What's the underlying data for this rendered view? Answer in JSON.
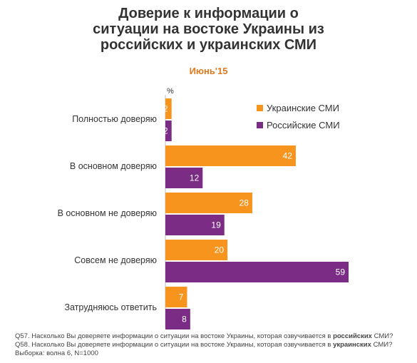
{
  "title_lines": [
    "Доверие к информации о",
    "ситуации на востоке Украины из",
    "российских и украинских СМИ"
  ],
  "subtitle": "Июнь'15",
  "unit_label": "%",
  "colors": {
    "ukrainian": "#f7941d",
    "russian": "#7b2c84"
  },
  "chart_data": {
    "type": "bar",
    "orientation": "horizontal",
    "title": "Доверие к информации о ситуации на востоке Украины из российских и украинских СМИ",
    "subtitle": "Июнь'15",
    "unit": "%",
    "categories": [
      "Полностью доверяю",
      "В основном доверяю",
      "В основном не доверяю",
      "Совсем не доверяю",
      "Затрудняюсь ответить"
    ],
    "series": [
      {
        "name": "Украинские СМИ",
        "values": [
          2,
          42,
          28,
          20,
          7
        ]
      },
      {
        "name": "Российские СМИ",
        "values": [
          2,
          12,
          19,
          59,
          8
        ]
      }
    ],
    "xlim": [
      0,
      59
    ],
    "grid": false,
    "legend_position": "top-right"
  },
  "footnote": {
    "q57_prefix": "Q57. Насколько Вы доверяете информации о ситуации на востоке Украины, которая озвучивается в",
    "q57_bold": "российских",
    "q57_suffix": "СМИ?",
    "q58_prefix": "Q58. Насколько Вы доверяете информации о ситуации на востоке Украины, которая озвучивается в",
    "q58_bold": "украинских",
    "q58_suffix": "СМИ?",
    "sample": "Выборка: волна 6, N=1000"
  }
}
